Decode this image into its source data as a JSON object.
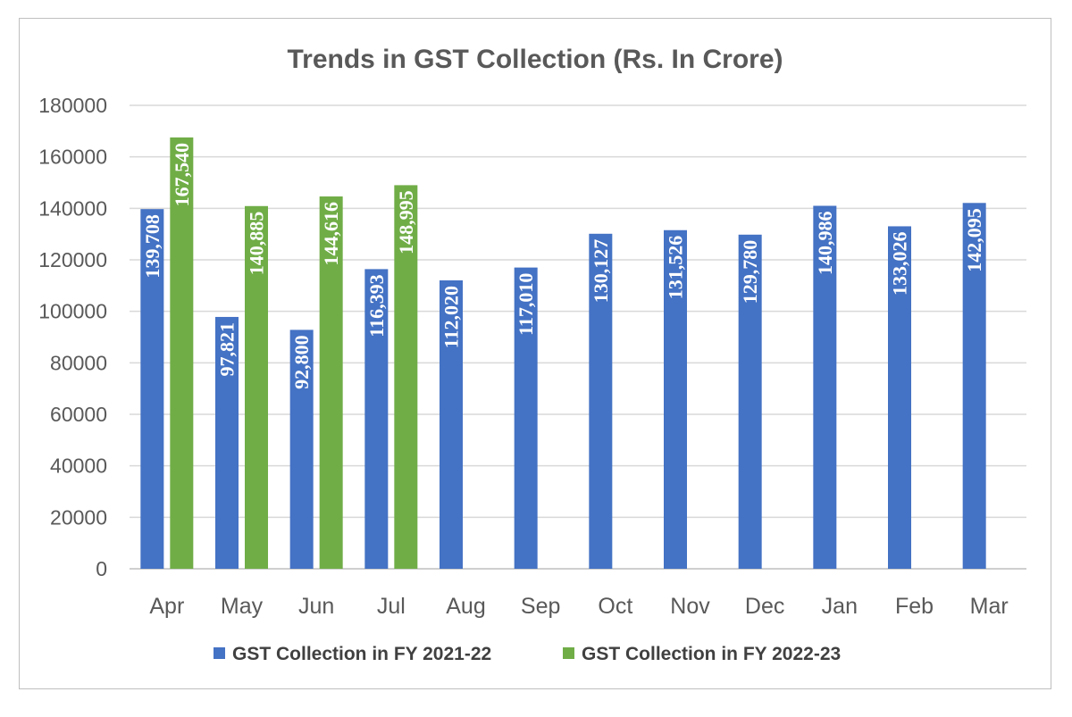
{
  "chart_data": {
    "type": "bar",
    "title": "Trends in GST Collection (Rs. In Crore)",
    "categories": [
      "Apr",
      "May",
      "Jun",
      "Jul",
      "Aug",
      "Sep",
      "Oct",
      "Nov",
      "Dec",
      "Jan",
      "Feb",
      "Mar"
    ],
    "series": [
      {
        "name": "GST Collection in FY 2021-22",
        "color": "#4472c4",
        "values": [
          139708,
          97821,
          92800,
          116393,
          112020,
          117010,
          130127,
          131526,
          129780,
          140986,
          133026,
          142095
        ],
        "labels": [
          "139,708",
          "97,821",
          "92,800",
          "116,393",
          "112,020",
          "117,010",
          "130,127",
          "131,526",
          "129,780",
          "140,986",
          "133,026",
          "142,095"
        ]
      },
      {
        "name": "GST Collection in FY 2022-23",
        "color": "#70ad47",
        "values": [
          167540,
          140885,
          144616,
          148995,
          null,
          null,
          null,
          null,
          null,
          null,
          null,
          null
        ],
        "labels": [
          "167,540",
          "140,885",
          "144,616",
          "148,995",
          "",
          "",
          "",
          "",
          "",
          "",
          "",
          ""
        ]
      }
    ],
    "ylim": [
      0,
      180000
    ],
    "yticks": [
      0,
      20000,
      40000,
      60000,
      80000,
      100000,
      120000,
      140000,
      160000,
      180000
    ],
    "ytick_labels": [
      "0",
      "20000",
      "40000",
      "60000",
      "80000",
      "100000",
      "120000",
      "140000",
      "160000",
      "180000"
    ],
    "grid": true,
    "legend_position": "bottom",
    "xlabel": "",
    "ylabel": ""
  }
}
